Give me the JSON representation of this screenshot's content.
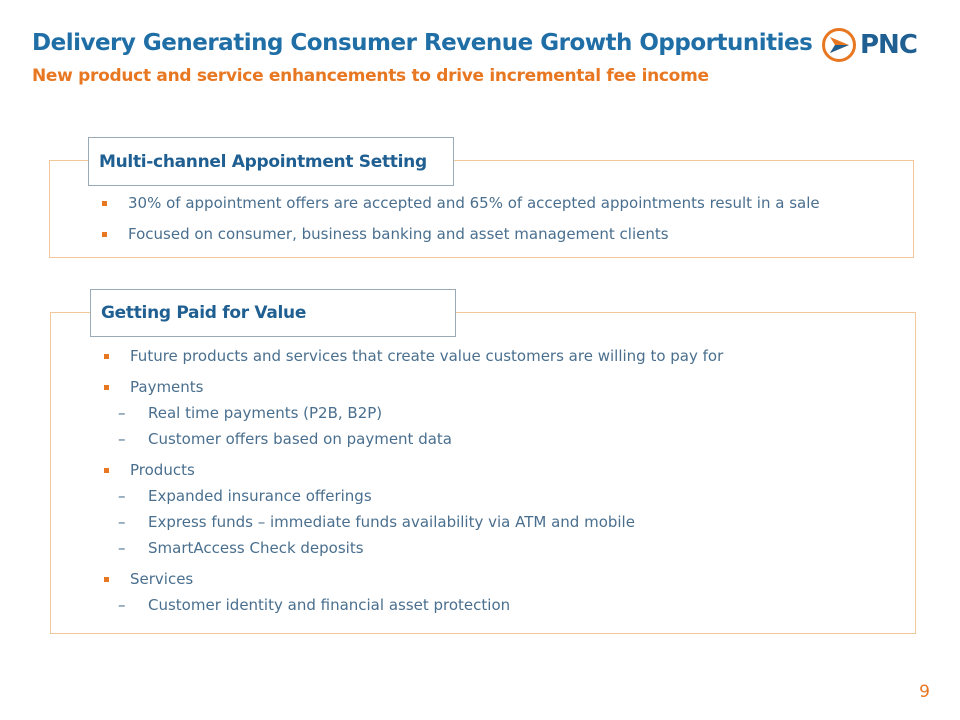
{
  "header": {
    "title": "Delivery Generating Consumer Revenue Growth Opportunities",
    "subtitle": "New product and service enhancements to drive incremental fee income"
  },
  "logo": {
    "text": "PNC",
    "colors": {
      "orange": "#e87722",
      "blue": "#1f5f91"
    }
  },
  "section1": {
    "heading": "Multi-channel Appointment Setting",
    "bullets": [
      "30% of appointment offers are accepted and 65% of accepted appointments result in a sale",
      "Focused on consumer, business banking and asset management clients"
    ]
  },
  "section2": {
    "heading": "Getting Paid for Value",
    "items": [
      {
        "text": "Future products and services that create value customers are willing to pay for",
        "sub": []
      },
      {
        "text": "Payments",
        "sub": [
          "Real time payments (P2B, B2P)",
          "Customer offers based on payment data"
        ]
      },
      {
        "text": "Products",
        "sub": [
          "Expanded insurance offerings",
          "Express funds – immediate funds availability via ATM and mobile",
          "SmartAccess Check deposits"
        ]
      },
      {
        "text": "Services",
        "sub": [
          "Customer identity and financial asset protection"
        ]
      }
    ]
  },
  "page_number": "9",
  "dash_glyph": "–"
}
